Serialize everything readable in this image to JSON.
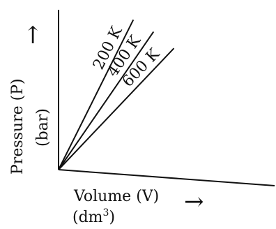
{
  "chart_data": {
    "type": "line",
    "title": "",
    "xlabel": "Volume (V)",
    "xunit_prefix": "(dm",
    "xunit_power": "3",
    "xunit_suffix": ")",
    "ylabel": "Pressure (P)",
    "yunit": "(bar)",
    "axis_arrow": "→",
    "grid": false,
    "series": [
      {
        "name": "200 K",
        "x": [
          0,
          1
        ],
        "y": [
          0,
          2.0
        ]
      },
      {
        "name": "400 K",
        "x": [
          0,
          1
        ],
        "y": [
          0,
          1.45
        ]
      },
      {
        "name": "600 K",
        "x": [
          0,
          1
        ],
        "y": [
          0,
          1.05
        ]
      }
    ]
  }
}
